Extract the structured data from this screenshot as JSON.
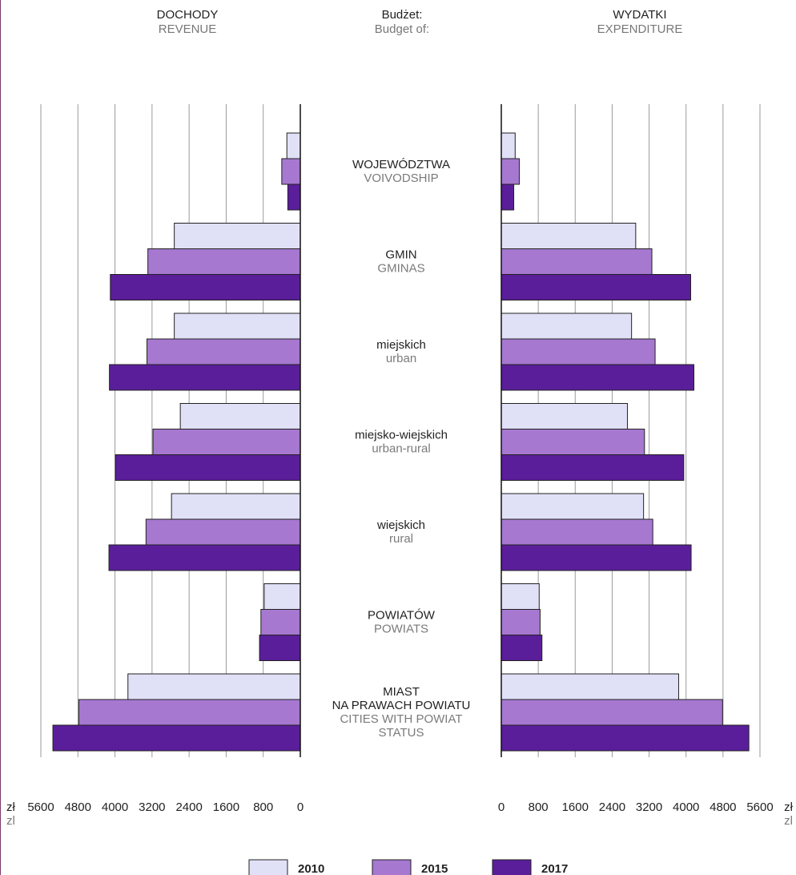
{
  "headers": {
    "left": {
      "pl": "DOCHODY",
      "en": "REVENUE"
    },
    "center": {
      "pl": "Budżet:",
      "en": "Budget of:"
    },
    "right": {
      "pl": "WYDATKI",
      "en": "EXPENDITURE"
    }
  },
  "units": {
    "pl": "zł",
    "en": "zl"
  },
  "colors": {
    "s2010": "#e0e0f7",
    "s2015": "#a678d0",
    "s2017": "#5a1e9a",
    "grid": "#9a9a9a",
    "axis": "#111111"
  },
  "chart_data": {
    "type": "bar",
    "orientation": "horizontal-mirrored",
    "xlim": [
      0,
      5600
    ],
    "ticks": [
      0,
      800,
      1600,
      2400,
      3200,
      4000,
      4800,
      5600
    ],
    "categories": [
      {
        "pl": [
          "WOJEWÓDZTWA"
        ],
        "en": [
          "VOIVODSHIP"
        ]
      },
      {
        "pl": [
          "GMIN"
        ],
        "en": [
          "GMINAS"
        ]
      },
      {
        "pl": [
          "miejskich"
        ],
        "en": [
          "urban"
        ]
      },
      {
        "pl": [
          "miejsko-wiejskich"
        ],
        "en": [
          "urban-rural"
        ]
      },
      {
        "pl": [
          "wiejskich"
        ],
        "en": [
          "rural"
        ]
      },
      {
        "pl": [
          "POWIATÓW"
        ],
        "en": [
          "POWIATS"
        ]
      },
      {
        "pl": [
          "MIAST",
          "NA PRAWACH POWIATU"
        ],
        "en": [
          "CITIES WITH POWIAT",
          "STATUS"
        ]
      }
    ],
    "series": [
      {
        "name": "2010",
        "revenue": [
          290,
          2720,
          2720,
          2590,
          2780,
          780,
          3720
        ],
        "expenditure": [
          300,
          2910,
          2820,
          2730,
          3080,
          820,
          3840
        ]
      },
      {
        "name": "2015",
        "revenue": [
          400,
          3290,
          3310,
          3180,
          3330,
          850,
          4780
        ],
        "expenditure": [
          390,
          3260,
          3330,
          3100,
          3280,
          840,
          4790
        ]
      },
      {
        "name": "2017",
        "revenue": [
          270,
          4100,
          4120,
          3990,
          4130,
          880,
          5340
        ],
        "expenditure": [
          270,
          4100,
          4170,
          3950,
          4110,
          880,
          5360
        ]
      }
    ]
  }
}
